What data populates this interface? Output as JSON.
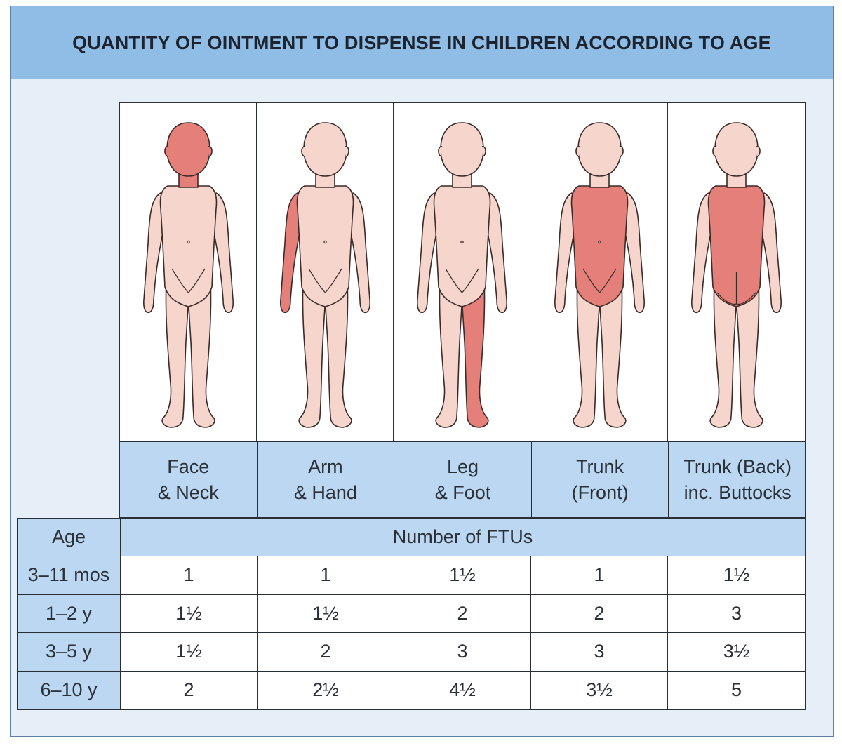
{
  "title": "QUANTITY OF OINTMENT TO DISPENSE IN CHILDREN ACCORDING TO AGE",
  "colors": {
    "skin": "#f6d5cd",
    "highlight": "#e47f7a",
    "header_blue": "#8fbde6",
    "cell_blue": "#bcd7f1",
    "background": "#e6eef8"
  },
  "figures": [
    {
      "highlight": "face-neck",
      "view": "front"
    },
    {
      "highlight": "arm-hand",
      "view": "front"
    },
    {
      "highlight": "leg-foot",
      "view": "front"
    },
    {
      "highlight": "trunk-front",
      "view": "front"
    },
    {
      "highlight": "trunk-back",
      "view": "back"
    }
  ],
  "regions": [
    {
      "line1": "Face",
      "line2": "& Neck"
    },
    {
      "line1": "Arm",
      "line2": "& Hand"
    },
    {
      "line1": "Leg",
      "line2": "& Foot"
    },
    {
      "line1": "Trunk",
      "line2": "(Front)"
    },
    {
      "line1": "Trunk (Back)",
      "line2": "inc. Buttocks"
    }
  ],
  "table": {
    "age_header": "Age",
    "ftu_header": "Number of FTUs"
  },
  "chart_data": {
    "type": "table",
    "title": "QUANTITY OF OINTMENT TO DISPENSE IN CHILDREN ACCORDING TO AGE",
    "columns": [
      "Face & Neck",
      "Arm & Hand",
      "Leg & Foot",
      "Trunk (Front)",
      "Trunk (Back) inc. Buttocks"
    ],
    "rows": [
      {
        "age": "3–11 mos",
        "values": [
          "1",
          "1",
          "1½",
          "1",
          "1½"
        ]
      },
      {
        "age": "1–2 y",
        "values": [
          "1½",
          "1½",
          "2",
          "2",
          "3"
        ]
      },
      {
        "age": "3–5 y",
        "values": [
          "1½",
          "2",
          "3",
          "3",
          "3½"
        ]
      },
      {
        "age": "6–10 y",
        "values": [
          "2",
          "2½",
          "4½",
          "3½",
          "5"
        ]
      }
    ]
  }
}
